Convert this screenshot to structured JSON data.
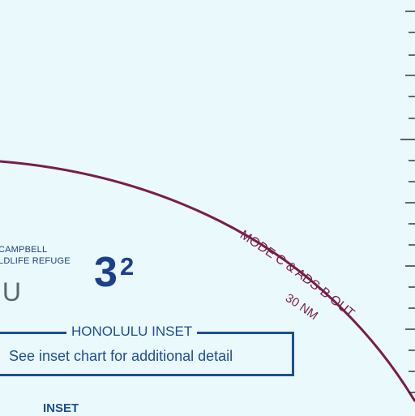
{
  "map": {
    "refuge_line1": "CAMPBELL",
    "refuge_line2": "LDLIFE REFUGE",
    "elevation_main": "3",
    "elevation_sup": "2",
    "town_partial": "IU",
    "inset_title": "HONOLULU INSET",
    "inset_detail": "See inset chart for additional detail",
    "inset_label": "INSET",
    "airspace_label": "MODE C & ADS-B OUT",
    "radius_label": "30 NM"
  },
  "colors": {
    "background": "#e9f9fc",
    "airspace_boundary": "#7a1d4a",
    "inset_blue": "#1f4e94",
    "ticks": "#2a2a2a"
  }
}
